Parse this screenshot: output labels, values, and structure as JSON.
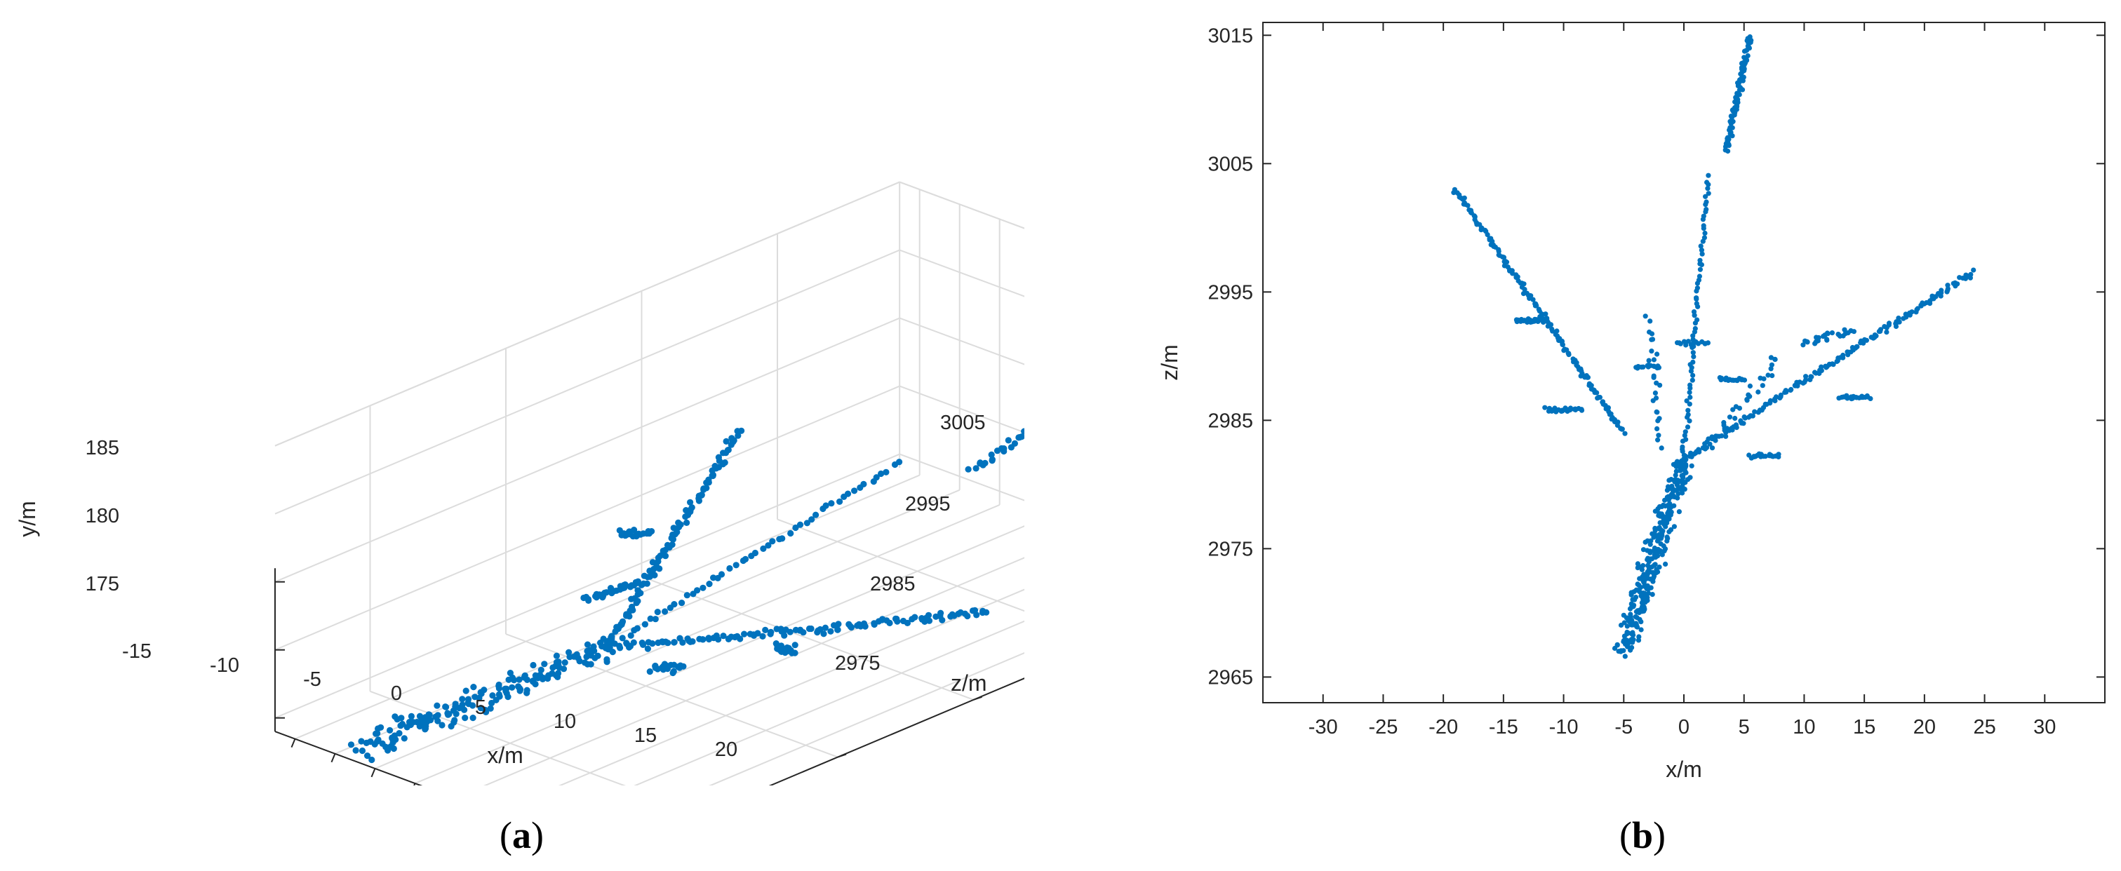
{
  "colors": {
    "points": "#0072bd",
    "axis": "#262626",
    "grid": "#dcdcdc"
  },
  "chart_data": [
    {
      "type": "scatter",
      "panel": "a",
      "view": "3d",
      "xlabel": "x/m",
      "ylabel": "y/m",
      "zlabel": "z/m",
      "x_ticks": [
        "-15",
        "-10",
        "-5",
        "0",
        "5",
        "10",
        "15",
        "20"
      ],
      "y_ticks": [
        "175",
        "180",
        "185"
      ],
      "z_ticks": [
        "2975",
        "2985",
        "2995",
        "3005"
      ],
      "xlim": [
        -18,
        24
      ],
      "ylim": [
        174,
        186
      ],
      "zlim": [
        2967,
        3015
      ],
      "grid": true,
      "segments": [
        {
          "from": [
            -5,
            176,
            2967
          ],
          "to": [
            0,
            178,
            2982
          ],
          "count": 170,
          "spread": 1.6
        },
        {
          "from": [
            0,
            178,
            2982
          ],
          "to": [
            24,
            180,
            2996
          ],
          "count": 120,
          "spread": 0.4
        },
        {
          "from": [
            0,
            178,
            2982
          ],
          "to": [
            -19,
            181,
            3003
          ],
          "count": 110,
          "spread": 0.4
        },
        {
          "from": [
            0,
            178,
            2982
          ],
          "to": [
            1,
            183,
            3003
          ],
          "count": 55,
          "spread": 0.3
        },
        {
          "from": [
            5,
            182,
            3006
          ],
          "to": [
            6,
            185,
            3015
          ],
          "count": 45,
          "spread": 0.4
        },
        {
          "from": [
            -6,
            179,
            2988
          ],
          "to": [
            -9,
            178,
            2986
          ],
          "count": 30,
          "spread": 0.4
        },
        {
          "from": [
            -13,
            179,
            2993
          ],
          "to": [
            -15,
            179,
            2992
          ],
          "count": 20,
          "spread": 0.4
        },
        {
          "from": [
            8,
            178,
            2983
          ],
          "to": [
            6,
            178,
            2982
          ],
          "count": 20,
          "spread": 0.4
        },
        {
          "from": [
            15,
            179,
            2987
          ],
          "to": [
            13,
            179,
            2987
          ],
          "count": 20,
          "spread": 0.4
        }
      ]
    },
    {
      "type": "scatter",
      "panel": "b",
      "view": "top (x-z)",
      "xlabel": "x/m",
      "ylabel": "z/m",
      "x_ticks": [
        "-30",
        "-25",
        "-20",
        "-15",
        "-10",
        "-5",
        "0",
        "5",
        "10",
        "15",
        "20",
        "25",
        "30"
      ],
      "y_ticks": [
        "2965",
        "2975",
        "2985",
        "2995",
        "3005",
        "3015"
      ],
      "xlim": [
        -35,
        35
      ],
      "ylim": [
        2963,
        3016
      ],
      "grid": false,
      "segments": [
        {
          "from": [
            -5,
            2967
          ],
          "to": [
            0,
            2982
          ],
          "count": 320,
          "spread": 1.3
        },
        {
          "from": [
            0,
            2982
          ],
          "to": [
            24,
            2996.5
          ],
          "count": 170,
          "spread": 0.35
        },
        {
          "from": [
            -19,
            3003
          ],
          "to": [
            -5,
            2984
          ],
          "count": 150,
          "spread": 0.3
        },
        {
          "from": [
            0,
            2982
          ],
          "to": [
            2,
            3004
          ],
          "count": 70,
          "spread": 0.3
        },
        {
          "from": [
            3.5,
            3006
          ],
          "to": [
            5.5,
            3015
          ],
          "count": 90,
          "spread": 0.35
        },
        {
          "from": [
            2,
            2983
          ],
          "to": [
            8,
            2990
          ],
          "count": 30,
          "spread": 0.6
        },
        {
          "from": [
            10,
            2991
          ],
          "to": [
            14,
            2992
          ],
          "count": 25,
          "spread": 0.5
        },
        {
          "from": [
            -2,
            2983
          ],
          "to": [
            -3,
            2993
          ],
          "count": 25,
          "spread": 0.6
        },
        {
          "from": [
            -11.5,
            2985.8
          ],
          "to": [
            -8.5,
            2985.8
          ],
          "count": 25,
          "spread": 0.25
        },
        {
          "from": [
            -14,
            2992.8
          ],
          "to": [
            -11.5,
            2992.8
          ],
          "count": 25,
          "spread": 0.25
        },
        {
          "from": [
            -4,
            2989.2
          ],
          "to": [
            -2,
            2989.2
          ],
          "count": 15,
          "spread": 0.2
        },
        {
          "from": [
            -0.5,
            2991
          ],
          "to": [
            2,
            2991
          ],
          "count": 15,
          "spread": 0.25
        },
        {
          "from": [
            3,
            2988.2
          ],
          "to": [
            5,
            2988.2
          ],
          "count": 18,
          "spread": 0.25
        },
        {
          "from": [
            5.5,
            2982.2
          ],
          "to": [
            8,
            2982.2
          ],
          "count": 20,
          "spread": 0.25
        },
        {
          "from": [
            13,
            2986.8
          ],
          "to": [
            15.5,
            2986.8
          ],
          "count": 20,
          "spread": 0.25
        }
      ]
    }
  ],
  "panel_labels": {
    "a": {
      "open": "(",
      "letter": "a",
      "close": ")"
    },
    "b": {
      "open": "(",
      "letter": "b",
      "close": ")"
    }
  }
}
